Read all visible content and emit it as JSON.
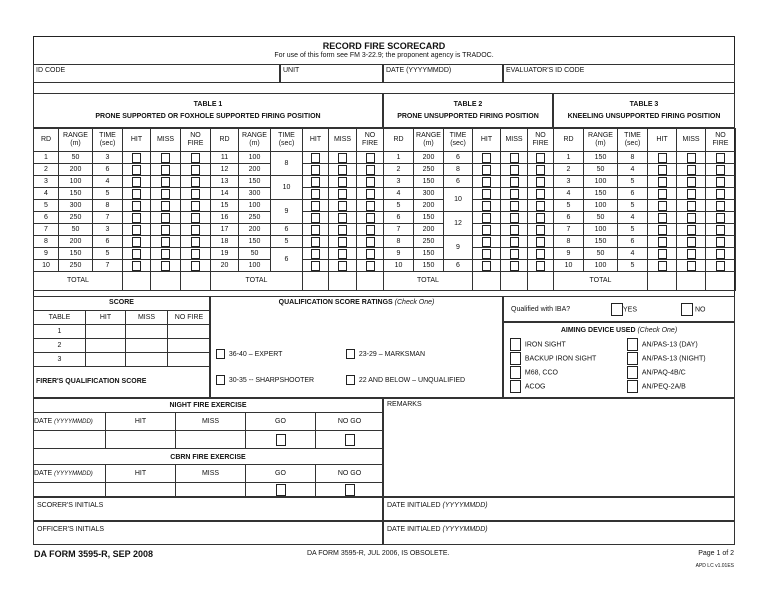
{
  "header": {
    "title": "RECORD FIRE SCORECARD",
    "subtitle": "For use of this form see FM 3-22.9; the proponent agency is TRADOC."
  },
  "id_row": {
    "id_code": "ID CODE",
    "unit": "UNIT",
    "date": "DATE (YYYYMMDD)",
    "evaluator": "EVALUATOR'S ID CODE"
  },
  "columns": {
    "rd": "RD",
    "range": "RANGE",
    "range_unit": "(m)",
    "time": "TIME",
    "time_unit": "(sec)",
    "hit": "HIT",
    "miss": "MISS",
    "no": "NO",
    "fire": "FIRE",
    "total": "TOTAL"
  },
  "tables": [
    {
      "title": "TABLE 1",
      "subtitle": "PRONE SUPPORTED OR FOXHOLE SUPPORTED FIRING POSITION",
      "halves": [
        {
          "rd": [
            "1",
            "2",
            "3",
            "4",
            "5",
            "6",
            "7",
            "8",
            "9",
            "10"
          ],
          "range": [
            "50",
            "200",
            "100",
            "150",
            "300",
            "250",
            "50",
            "200",
            "150",
            "250"
          ],
          "time": [
            "3",
            "6",
            "4",
            "5",
            "8",
            "7",
            "3",
            "6",
            "5",
            "7"
          ]
        },
        {
          "rd": [
            "11",
            "12",
            "13",
            "14",
            "15",
            "16",
            "17",
            "18",
            "19",
            "20"
          ],
          "range": [
            "100",
            "200",
            "150",
            "300",
            "100",
            "250",
            "200",
            "150",
            "50",
            "100"
          ],
          "time": [
            "8",
            null,
            "10",
            null,
            "9",
            null,
            "6",
            "5",
            "6",
            null
          ]
        }
      ]
    },
    {
      "title": "TABLE 2",
      "subtitle": "PRONE UNSUPPORTED FIRING POSITION",
      "halves": [
        {
          "rd": [
            "1",
            "2",
            "3",
            "4",
            "5",
            "6",
            "7",
            "8",
            "9",
            "10"
          ],
          "range": [
            "200",
            "250",
            "150",
            "300",
            "200",
            "150",
            "200",
            "250",
            "150",
            "150"
          ],
          "time": [
            "6",
            "8",
            "6",
            "10",
            null,
            "12",
            null,
            "9",
            null,
            "6"
          ]
        }
      ]
    },
    {
      "title": "TABLE 3",
      "subtitle": "KNEELING UNSUPPORTED FIRING POSITION",
      "halves": [
        {
          "rd": [
            "1",
            "2",
            "3",
            "4",
            "5",
            "6",
            "7",
            "8",
            "9",
            "10"
          ],
          "range": [
            "150",
            "50",
            "100",
            "150",
            "100",
            "50",
            "100",
            "150",
            "50",
            "100"
          ],
          "time": [
            "8",
            "4",
            "5",
            "6",
            "5",
            "4",
            "5",
            "6",
            "4",
            "5"
          ]
        }
      ]
    }
  ],
  "score": {
    "title": "SCORE",
    "headers": [
      "TABLE",
      "HIT",
      "MISS",
      "NO FIRE"
    ],
    "rows": [
      "1",
      "2",
      "3"
    ],
    "firer": "FIRER'S QUALIFICATION SCORE"
  },
  "qualification": {
    "title": "QUALIFICATION SCORE RATINGS",
    "note": "(Check One)",
    "options": [
      "36-40 – EXPERT",
      "23-29 – MARKSMAN",
      "30-35 -- SHARPSHOOTER",
      "22 AND BELOW – UNQUALIFIED"
    ]
  },
  "iba": {
    "label": "Qualified with IBA?",
    "yes": "YES",
    "no": "NO"
  },
  "aiming": {
    "title": "AIMING DEVICE USED",
    "note": "(Check One)",
    "options": [
      "IRON SIGHT",
      "AN/PAS-13 (DAY)",
      "BACKUP IRON SIGHT",
      "AN/PAS-13 (NIGHT)",
      "M68, CCO",
      "AN/PAQ-4B/C",
      "ACOG",
      "AN/PEQ-2A/B"
    ]
  },
  "night": {
    "title": "NIGHT FIRE EXERCISE",
    "date": "DATE",
    "date_fmt": "(YYYYMMDD)",
    "hit": "HIT",
    "miss": "MISS",
    "go": "GO",
    "nogo": "NO GO"
  },
  "cbrn": {
    "title": "CBRN FIRE EXERCISE",
    "date": "DATE",
    "date_fmt": "(YYYYMMDD)",
    "hit": "HIT",
    "miss": "MISS",
    "go": "GO",
    "nogo": "NO GO"
  },
  "remarks": "REMARKS",
  "scorer": "SCORER'S INITIALS",
  "officer": "OFFICER'S INITIALS",
  "date_initialed": "DATE INITIALED",
  "date_fmt": "(YYYYMMDD)",
  "footer": {
    "form": "DA FORM 3595-R, SEP 2008",
    "obsolete": "DA FORM 3595-R, JUL 2006, IS OBSOLETE.",
    "page": "Page 1 of 2",
    "version": "APD LC v1.01ES"
  }
}
